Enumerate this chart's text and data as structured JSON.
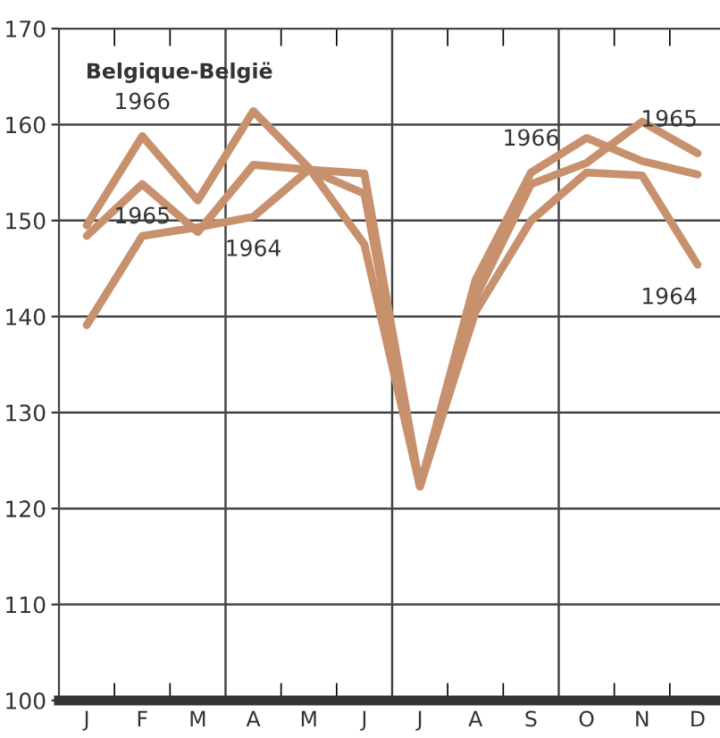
{
  "chart_data": {
    "type": "line",
    "title": "Belgique-België",
    "categories": [
      "J",
      "F",
      "M",
      "A",
      "M",
      "J",
      "J",
      "A",
      "S",
      "O",
      "N",
      "D"
    ],
    "series": [
      {
        "color": "#c8916e",
        "values": [
          149.5,
          158.8,
          152.1,
          161.4,
          155.5,
          147.5,
          122.3,
          143.8,
          155,
          158.6,
          156.2,
          154.8
        ]
      },
      {
        "color": "#c8916e",
        "values": [
          148.4,
          153.8,
          148.8,
          155.8,
          155.3,
          152.8,
          122.3,
          142,
          153.8,
          156,
          160.3,
          157
        ]
      },
      {
        "color": "#c8916e",
        "values": [
          139.1,
          148.4,
          149.3,
          150.4,
          155.3,
          154.9,
          122.3,
          140.5,
          150,
          155,
          154.7,
          145.4
        ]
      }
    ],
    "ylim": [
      100,
      170
    ],
    "yticks": [
      100,
      110,
      120,
      130,
      140,
      150,
      160,
      170
    ],
    "grid": true,
    "legend": false,
    "marker": "none",
    "line_style": "solid",
    "annotations": [
      {
        "text": "1966",
        "x": "F",
        "y": 158.8
      },
      {
        "text": "1965",
        "x": "F",
        "y": 153.8
      },
      {
        "text": "1964",
        "x": "A",
        "y": 150.4
      },
      {
        "text": "1966",
        "x": "S",
        "y": 155
      },
      {
        "text": "1965",
        "x": "D",
        "y": 157
      },
      {
        "text": "1964",
        "x": "D",
        "y": 145.4
      }
    ]
  }
}
